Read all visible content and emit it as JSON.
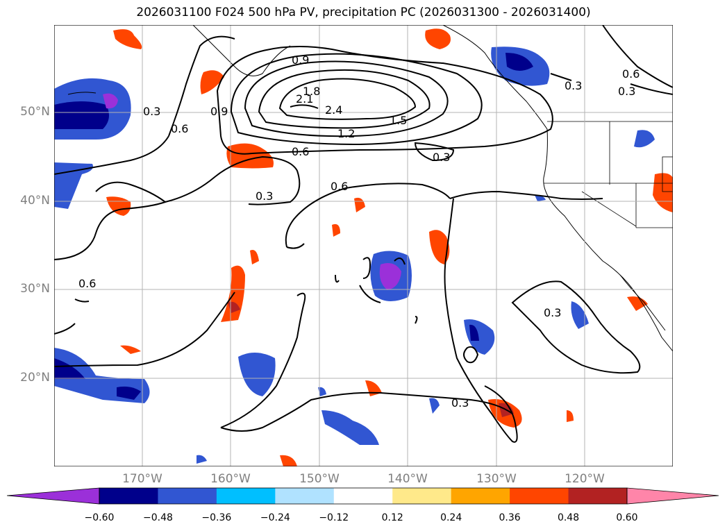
{
  "title": "2026031100 F024 500 hPa PV, precipitation PC (2026031300 - 2026031400)",
  "lat_labels": [
    "50°N",
    "40°N",
    "30°N",
    "20°N"
  ],
  "lon_labels": [
    "170°W",
    "160°W",
    "150°W",
    "140°W",
    "130°W",
    "120°W"
  ],
  "contour_labels": [
    "0.9",
    "1.8",
    "2.1",
    "2.4",
    "1.2",
    "1.5",
    "0.3",
    "0.6",
    "0.9",
    "0.6",
    "0.3",
    "0.6",
    "0.3",
    "0.6",
    "0.3",
    "0.3",
    "0.6",
    "0.3",
    "0.3"
  ],
  "colorbar": {
    "ticks": [
      "−0.60",
      "−0.48",
      "−0.36",
      "−0.24",
      "−0.12",
      "0.12",
      "0.24",
      "0.36",
      "0.48",
      "0.60"
    ],
    "colors": [
      "#9b30d9",
      "#00008b",
      "#3156d2",
      "#00bfff",
      "#b0e2ff",
      "#ffffff",
      "#ffe98a",
      "#ffa500",
      "#ff4500",
      "#b22222",
      "#ff85a9"
    ]
  }
}
